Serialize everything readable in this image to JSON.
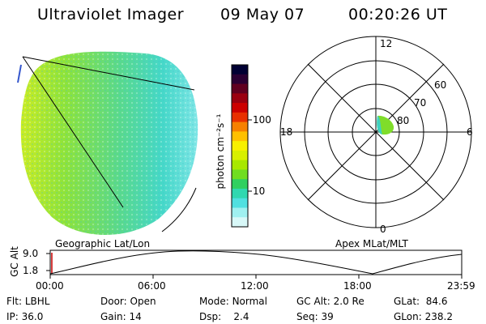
{
  "header": {
    "instrument": "Ultraviolet Imager",
    "date": "09 May 07",
    "time": "00:20:26 UT"
  },
  "colorbar": {
    "unit_label": "photon cm⁻²s⁻¹",
    "ticks": [
      "100",
      "10"
    ],
    "colors": [
      "#000033",
      "#2a0033",
      "#600020",
      "#9a0010",
      "#cc0000",
      "#e83000",
      "#f78000",
      "#ffc000",
      "#f8f000",
      "#d8f000",
      "#a8e800",
      "#70dd20",
      "#30d060",
      "#30d8b0",
      "#50e0e0",
      "#9ff0f0",
      "#d8f8f8"
    ]
  },
  "polar_plot": {
    "mlt_labels": {
      "top": "12",
      "left": "18",
      "right": "6",
      "bottom": "0"
    },
    "lat_labels": [
      "60",
      "70",
      "80"
    ]
  },
  "map_labels": {
    "left": "Geographic Lat/Lon",
    "right": "Apex MLat/MLT"
  },
  "alt_plot": {
    "axis_label": "GC Alt",
    "y_ticks": [
      "9.0",
      "1.8"
    ],
    "x_ticks": [
      "00:00",
      "06:00",
      "12:00",
      "18:00",
      "23:59"
    ]
  },
  "info": {
    "row1": [
      {
        "label": "Flt:",
        "value": "LBHL"
      },
      {
        "label": "Door:",
        "value": "Open"
      },
      {
        "label": "Mode:",
        "value": "Normal"
      },
      {
        "label": "GC Alt:",
        "value": "2.0 Re"
      },
      {
        "label": "GLat:",
        "value": "84.6"
      }
    ],
    "row2": [
      {
        "label": "IP:",
        "value": "36.0"
      },
      {
        "label": "Gain:",
        "value": "14"
      },
      {
        "label": "Dsp:",
        "value": "2.4"
      },
      {
        "label": "Seq:",
        "value": "39"
      },
      {
        "label": "GLon:",
        "value": "238.2"
      }
    ]
  }
}
